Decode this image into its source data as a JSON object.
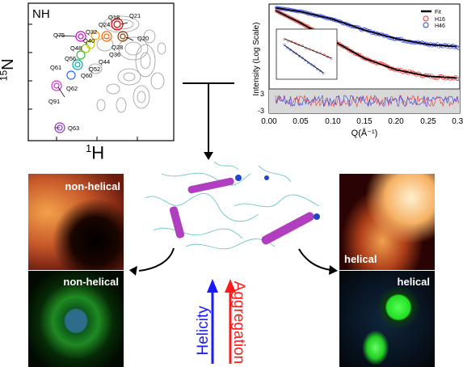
{
  "nmr": {
    "panel_label": "NH",
    "y_axis_label_sup": "15",
    "y_axis_label": "N",
    "x_axis_label_sup": "1",
    "x_axis_label": "H",
    "peaks": [
      "Q18",
      "Q21",
      "Q24",
      "Q20",
      "Q32",
      "Q75",
      "Q40",
      "Q28",
      "Q48",
      "Q36",
      "Q56",
      "Q44",
      "Q61",
      "Q52",
      "Q60",
      "Q62",
      "Q91",
      "Q63"
    ]
  },
  "saxs": {
    "legend": [
      "Fit",
      "H16",
      "H46"
    ],
    "legend_colors": [
      "#000000",
      "#e8322f",
      "#2b3fe0"
    ],
    "ylabel": "Intensity (Log Scale)",
    "xlabel": "Q(Å⁻¹)",
    "x_ticks": [
      "0.00",
      "0.05",
      "0.10",
      "0.15",
      "0.20",
      "0.25",
      "0.30"
    ],
    "residual_ticks": [
      "3",
      "-3"
    ]
  },
  "micro": {
    "top_left_label": "non-helical",
    "bottom_left_label": "non-helical",
    "top_right_label": "helical",
    "bottom_right_label": "helical"
  },
  "arrows": {
    "helicity_label": "Helicity",
    "aggregation_label": "Aggregation",
    "helicity_color": "#1a1aff",
    "aggregation_color": "#ff1a1a"
  },
  "chart_data": {
    "type": "scatter",
    "xlabel": "Q(Å⁻¹)",
    "ylabel": "Intensity (Log Scale)",
    "xlim": [
      0.0,
      0.3
    ],
    "log_y": true,
    "series": [
      {
        "name": "H16",
        "x": [
          0.01,
          0.05,
          0.1,
          0.15,
          0.2,
          0.25,
          0.3
        ],
        "y": [
          0.9,
          0.55,
          0.28,
          0.14,
          0.09,
          0.07,
          0.065
        ]
      },
      {
        "name": "H46",
        "x": [
          0.01,
          0.05,
          0.1,
          0.15,
          0.2,
          0.25,
          0.3
        ],
        "y": [
          1.0,
          0.86,
          0.64,
          0.42,
          0.3,
          0.24,
          0.22
        ]
      },
      {
        "name": "Fit",
        "x": [
          0.01,
          0.05,
          0.1,
          0.15,
          0.2,
          0.25,
          0.3
        ],
        "y": [
          1.0,
          0.86,
          0.64,
          0.42,
          0.3,
          0.24,
          0.22
        ]
      }
    ]
  }
}
